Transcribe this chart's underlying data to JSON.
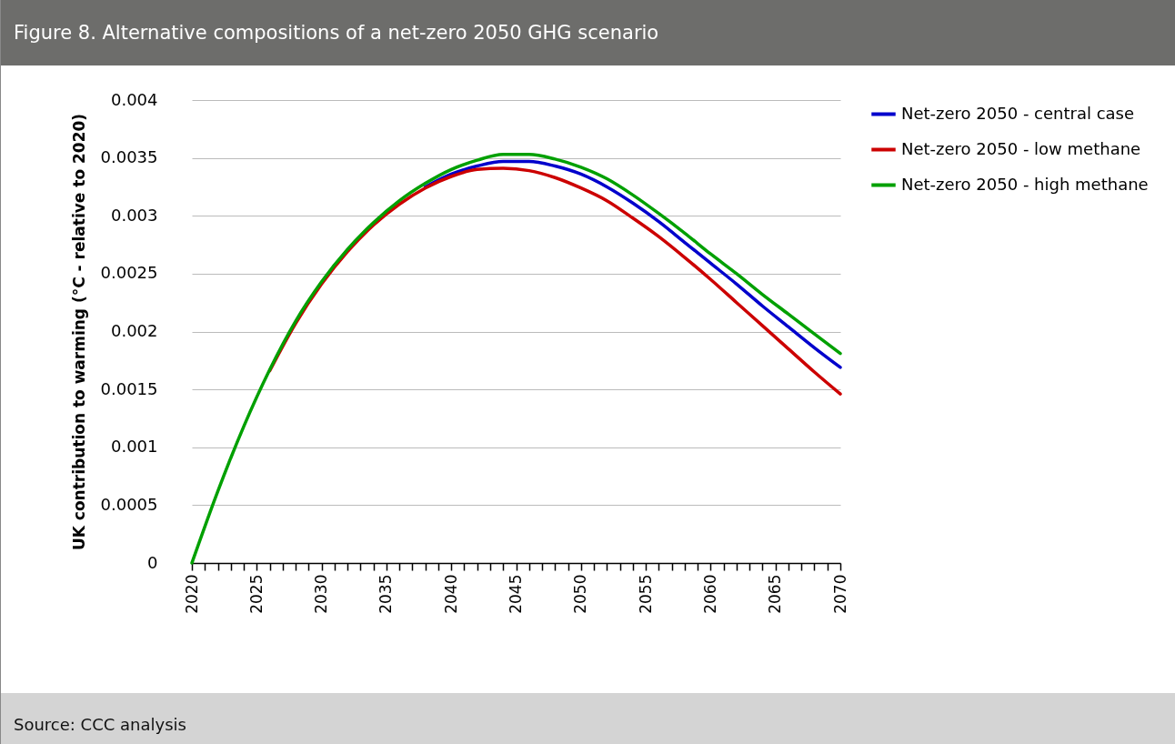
{
  "chart_data": {
    "type": "line",
    "title": "Figure 8. Alternative compositions of a net-zero 2050 GHG scenario",
    "ylabel": "UK contribution to warming (°C - relative to 2020)",
    "annotations": [
      "Source: CCC analysis"
    ],
    "x": [
      2020,
      2022,
      2024,
      2026,
      2028,
      2030,
      2032,
      2034,
      2036,
      2038,
      2040,
      2042,
      2044,
      2046,
      2048,
      2050,
      2052,
      2054,
      2056,
      2058,
      2060,
      2062,
      2064,
      2066,
      2068,
      2070
    ],
    "series": [
      {
        "name": "Net-zero 2050 - central case",
        "color": "#0000cc",
        "values": [
          null,
          null,
          null,
          null,
          null,
          null,
          null,
          null,
          null,
          0.00325,
          0.00336,
          0.00343,
          0.00347,
          0.00347,
          0.00343,
          0.00336,
          0.00325,
          0.00311,
          0.00295,
          0.00277,
          0.00259,
          0.00241,
          0.00222,
          0.00204,
          0.00186,
          0.00169
        ]
      },
      {
        "name": "Net-zero 2050 - low methane",
        "color": "#cc0000",
        "values": [
          null,
          null,
          null,
          0.00166,
          0.00207,
          0.00241,
          0.00269,
          0.00292,
          0.0031,
          0.00324,
          0.00334,
          0.0034,
          0.00341,
          0.00339,
          0.00333,
          0.00324,
          0.00313,
          0.00298,
          0.00282,
          0.00264,
          0.00245,
          0.00225,
          0.00205,
          0.00185,
          0.00165,
          0.00146
        ]
      },
      {
        "name": "Net-zero 2050 - high methane",
        "color": "#00a000",
        "values": [
          0,
          0.00062,
          0.00118,
          0.00167,
          0.00209,
          0.00243,
          0.00271,
          0.00294,
          0.00313,
          0.00328,
          0.0034,
          0.00348,
          0.00353,
          0.00353,
          0.00349,
          0.00342,
          0.00332,
          0.00318,
          0.00302,
          0.00285,
          0.00267,
          0.0025,
          0.00232,
          0.00215,
          0.00198,
          0.00181
        ]
      }
    ],
    "xlim": [
      2020,
      2070
    ],
    "xticks": [
      2020,
      {
        "value": 2021,
        "label": null
      },
      {
        "value": 2022,
        "label": null
      },
      {
        "value": 2023,
        "label": null
      },
      {
        "value": 2024,
        "label": null
      },
      2025,
      {
        "value": 2026,
        "label": null
      },
      {
        "value": 2027,
        "label": null
      },
      {
        "value": 2028,
        "label": null
      },
      {
        "value": 2029,
        "label": null
      },
      2030,
      {
        "value": 2031,
        "label": null
      },
      {
        "value": 2032,
        "label": null
      },
      {
        "value": 2033,
        "label": null
      },
      {
        "value": 2034,
        "label": null
      },
      2035,
      {
        "value": 2036,
        "label": null
      },
      {
        "value": 2037,
        "label": null
      },
      {
        "value": 2038,
        "label": null
      },
      {
        "value": 2039,
        "label": null
      },
      2040,
      {
        "value": 2041,
        "label": null
      },
      {
        "value": 2042,
        "label": null
      },
      {
        "value": 2043,
        "label": null
      },
      {
        "value": 2044,
        "label": null
      },
      2045,
      {
        "value": 2046,
        "label": null
      },
      {
        "value": 2047,
        "label": null
      },
      {
        "value": 2048,
        "label": null
      },
      {
        "value": 2049,
        "label": null
      },
      2050,
      {
        "value": 2051,
        "label": null
      },
      {
        "value": 2052,
        "label": null
      },
      {
        "value": 2053,
        "label": null
      },
      {
        "value": 2054,
        "label": null
      },
      2055,
      {
        "value": 2056,
        "label": null
      },
      {
        "value": 2057,
        "label": null
      },
      {
        "value": 2058,
        "label": null
      },
      {
        "value": 2059,
        "label": null
      },
      2060,
      {
        "value": 2061,
        "label": null
      },
      {
        "value": 2062,
        "label": null
      },
      {
        "value": 2063,
        "label": null
      },
      {
        "value": 2064,
        "label": null
      },
      2065,
      {
        "value": 2066,
        "label": null
      },
      {
        "value": 2067,
        "label": null
      },
      {
        "value": 2068,
        "label": null
      },
      {
        "value": 2069,
        "label": null
      },
      2070
    ],
    "ylim": [
      0,
      0.004
    ],
    "yticks": [
      0,
      0.0005,
      0.001,
      0.0015,
      0.002,
      0.0025,
      0.003,
      0.0035,
      0.004
    ],
    "grid": "y",
    "legend": "right",
    "marker": "none",
    "line_style": "solid"
  }
}
